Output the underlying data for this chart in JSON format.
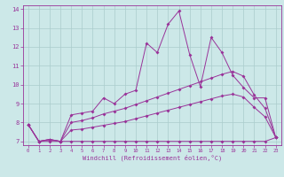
{
  "xlabel": "Windchill (Refroidissement éolien,°C)",
  "bg_color": "#cce8e8",
  "grid_color": "#aacccc",
  "line_color": "#993399",
  "xlim": [
    -0.5,
    23.5
  ],
  "ylim": [
    6.8,
    14.2
  ],
  "xticks": [
    0,
    1,
    2,
    3,
    4,
    5,
    6,
    7,
    8,
    9,
    10,
    11,
    12,
    13,
    14,
    15,
    16,
    17,
    18,
    19,
    20,
    21,
    22,
    23
  ],
  "yticks": [
    7,
    8,
    9,
    10,
    11,
    12,
    13,
    14
  ],
  "line1_x": [
    0,
    1,
    2,
    3,
    4,
    5,
    6,
    7,
    8,
    9,
    10,
    11,
    12,
    13,
    14,
    15,
    16,
    17,
    18,
    19,
    20,
    21,
    22,
    23
  ],
  "line1_y": [
    7.9,
    7.0,
    7.1,
    7.0,
    8.4,
    8.5,
    8.6,
    9.3,
    9.0,
    9.5,
    9.7,
    12.2,
    11.7,
    13.2,
    13.9,
    11.6,
    9.9,
    12.5,
    11.7,
    10.5,
    9.85,
    9.3,
    9.3,
    7.2
  ],
  "line2_x": [
    0,
    1,
    2,
    3,
    4,
    5,
    6,
    7,
    8,
    9,
    10,
    11,
    12,
    13,
    14,
    15,
    16,
    17,
    18,
    19,
    20,
    21,
    22,
    23
  ],
  "line2_y": [
    7.9,
    7.0,
    7.1,
    7.0,
    8.0,
    8.1,
    8.25,
    8.45,
    8.6,
    8.75,
    8.95,
    9.15,
    9.35,
    9.55,
    9.75,
    9.95,
    10.15,
    10.35,
    10.55,
    10.7,
    10.45,
    9.45,
    8.75,
    7.2
  ],
  "line3_x": [
    0,
    1,
    2,
    3,
    4,
    5,
    6,
    7,
    8,
    9,
    10,
    11,
    12,
    13,
    14,
    15,
    16,
    17,
    18,
    19,
    20,
    21,
    22,
    23
  ],
  "line3_y": [
    7.9,
    7.0,
    7.1,
    7.0,
    7.6,
    7.65,
    7.75,
    7.85,
    7.95,
    8.05,
    8.2,
    8.35,
    8.5,
    8.65,
    8.8,
    8.95,
    9.1,
    9.25,
    9.4,
    9.5,
    9.35,
    8.8,
    8.3,
    7.2
  ],
  "line4_x": [
    0,
    1,
    2,
    3,
    4,
    5,
    6,
    7,
    8,
    9,
    10,
    11,
    12,
    13,
    14,
    15,
    16,
    17,
    18,
    19,
    20,
    21,
    22,
    23
  ],
  "line4_y": [
    7.9,
    7.0,
    7.0,
    7.0,
    7.0,
    7.0,
    7.0,
    7.0,
    7.0,
    7.0,
    7.0,
    7.0,
    7.0,
    7.0,
    7.0,
    7.0,
    7.0,
    7.0,
    7.0,
    7.0,
    7.0,
    7.0,
    7.0,
    7.2
  ]
}
